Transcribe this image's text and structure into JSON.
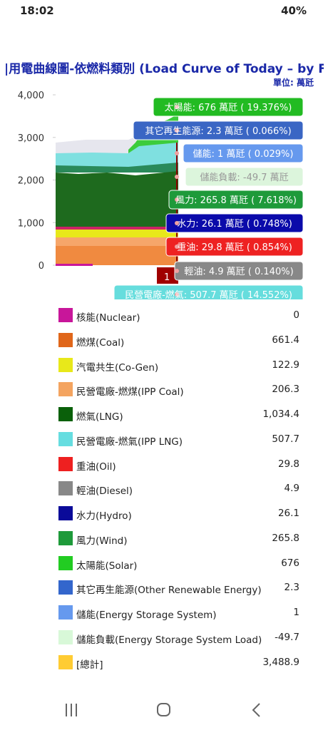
{
  "status_bar": {
    "time": "18:02",
    "battery": "40%"
  },
  "header": {
    "title": "|用電曲線圖-依燃料類別 (Load Curve of Today – by Fu",
    "unit": "單位: 萬瓩"
  },
  "chart": {
    "ylim": [
      0,
      4000
    ],
    "yticks": [
      0,
      {
        "value": 1000,
        "label": "1,000"
      },
      {
        "value": 2000,
        "label": "2,000"
      },
      {
        "value": 3000,
        "label": "3,000"
      },
      {
        "value": 4000,
        "label": "4,000"
      }
    ],
    "marker_label": "1",
    "tooltips": [
      {
        "text": "太陽能: 676 萬瓩 ( 19.376%)",
        "color": "#22bb22"
      },
      {
        "text": "其它再生能源: 2.3 萬瓩 ( 0.066%)",
        "color": "#3a66c4"
      },
      {
        "text": "儲能: 1 萬瓩 ( 0.029%)",
        "color": "#6699ee"
      },
      {
        "text": "儲能負載: -49.7 萬瓩",
        "color": "#dcf5dc"
      },
      {
        "text": "風力: 265.8 萬瓩 ( 7.618%)",
        "color": "#1e9a3a"
      },
      {
        "text": "水力: 26.1 萬瓩 ( 0.748%)",
        "color": "#0a0aaa"
      },
      {
        "text": "重油: 29.8 萬瓩 ( 0.854%)",
        "color": "#ee2222"
      },
      {
        "text": "輕油: 4.9 萬瓩 ( 0.140%)",
        "color": "#888888"
      },
      {
        "text": "民營電廠-燃氣: 507.7 萬瓩 ( 14.552%)",
        "color": "#66dddd"
      }
    ]
  },
  "legend": [
    {
      "name": "核能(Nuclear)",
      "value": "0",
      "color": "#c8169a"
    },
    {
      "name": "燃煤(Coal)",
      "value": "661.4",
      "color": "#e0661a"
    },
    {
      "name": "汽電共生(Co-Gen)",
      "value": "122.9",
      "color": "#e8e81a"
    },
    {
      "name": "民營電廠-燃煤(IPP Coal)",
      "value": "206.3",
      "color": "#f4a460"
    },
    {
      "name": "燃氣(LNG)",
      "value": "1,034.4",
      "color": "#0a600a"
    },
    {
      "name": "民營電廠-燃氣(IPP LNG)",
      "value": "507.7",
      "color": "#66dde0"
    },
    {
      "name": "重油(Oil)",
      "value": "29.8",
      "color": "#ee2020"
    },
    {
      "name": "輕油(Diesel)",
      "value": "4.9",
      "color": "#888888"
    },
    {
      "name": "水力(Hydro)",
      "value": "26.1",
      "color": "#0a0a99"
    },
    {
      "name": "風力(Wind)",
      "value": "265.8",
      "color": "#1e9a3a"
    },
    {
      "name": "太陽能(Solar)",
      "value": "676",
      "color": "#22cc22"
    },
    {
      "name": "其它再生能源(Other Renewable Energy)",
      "value": "2.3",
      "color": "#3366cc"
    },
    {
      "name": "儲能(Energy Storage System)",
      "value": "1",
      "color": "#6699ee"
    },
    {
      "name": "儲能負載(Energy Storage System Load)",
      "value": "-49.7",
      "color": "#d8f8d8"
    },
    {
      "name": "[總計]",
      "value": "3,488.9",
      "color": "#ffcc33"
    }
  ]
}
